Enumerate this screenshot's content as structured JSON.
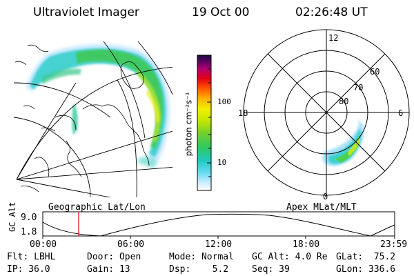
{
  "header": {
    "instrument": "Ultraviolet Imager",
    "date": "19 Oct 00",
    "time": "02:26:48 UT"
  },
  "colorbar": {
    "label": "photon cm⁻²s⁻¹",
    "ticks": [
      "100",
      "10"
    ],
    "scale": "log",
    "colors": [
      "#ffffff",
      "#b0e8ff",
      "#30d0e0",
      "#20c8a0",
      "#40d040",
      "#a0e000",
      "#f0f000",
      "#ffb000",
      "#ff6000",
      "#e00010",
      "#c00060",
      "#600060",
      "#1a1040"
    ]
  },
  "left_map": {
    "caption": "Geographic Lat/Lon",
    "aurora_colors": [
      "#a8dcff",
      "#30d0c0",
      "#38c848",
      "#80d830",
      "#d8e820"
    ]
  },
  "polar_plot": {
    "caption": "Apex MLat/MLT",
    "mlt_labels": {
      "top": "12",
      "left": "18",
      "right": "6",
      "bottom": "0"
    },
    "mlat_labels": [
      "60",
      "70",
      "80"
    ]
  },
  "altitude_panel": {
    "ylabel": "GC Alt",
    "y_max": "9.0",
    "y_min": "1.8",
    "x_ticks": [
      "00:00",
      "06:00",
      "12:00",
      "18:00",
      "23:59"
    ],
    "marker_time": "02:26:48",
    "marker_color": "#e00000"
  },
  "status": {
    "row1": {
      "flt": "Flt: LBHL",
      "door": "Door: Open",
      "mode": "Mode: Normal",
      "gc_alt": "GC Alt: 4.0 Re",
      "glat": "GLat:  75.2"
    },
    "row2": {
      "ip": "IP: 36.0",
      "gain": "Gain: 13",
      "dsp": "Dsp:    5.2",
      "seq": "Seq: 39",
      "glon": "GLon: 336.6"
    }
  }
}
